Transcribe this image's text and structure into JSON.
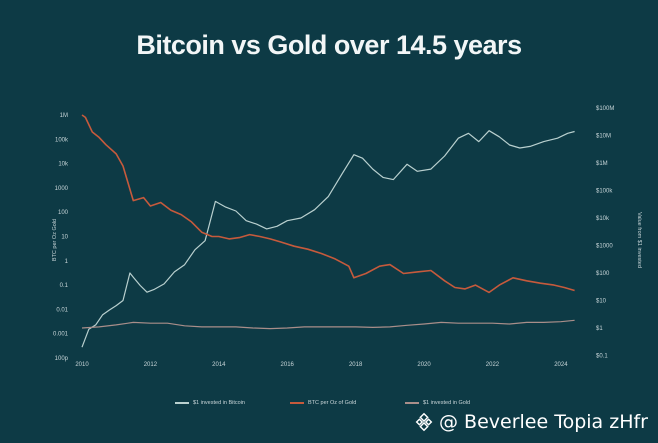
{
  "chart_data": {
    "type": "line",
    "title": "Bitcoin vs Gold over 14.5 years",
    "xlabel": "",
    "ylabel_left": "BTC per Oz Gold",
    "ylabel_right": "Value from $1 invested",
    "x_ticks": [
      "2010",
      "2012",
      "2014",
      "2016",
      "2018",
      "2020",
      "2022",
      "2024"
    ],
    "xlim": [
      2010,
      2024.5
    ],
    "left_ticks": [
      "1M",
      "100k",
      "10k",
      "1000",
      "100",
      "10",
      "1",
      "0.1",
      "0.01",
      "0.001",
      "100p"
    ],
    "right_ticks": [
      "$100M",
      "$10M",
      "$1M",
      "$100k",
      "$10k",
      "$1000",
      "$100",
      "$10",
      "$1",
      "$0.1"
    ],
    "grid": false,
    "legend_position": "bottom",
    "series": [
      {
        "name": "$1 invested in Bitcoin",
        "color": "#b9d0cf",
        "axis": "right",
        "x": [
          2010.0,
          2010.2,
          2010.4,
          2010.6,
          2010.8,
          2011.0,
          2011.2,
          2011.4,
          2011.5,
          2011.7,
          2011.9,
          2012.1,
          2012.4,
          2012.7,
          2013.0,
          2013.3,
          2013.6,
          2013.9,
          2014.2,
          2014.5,
          2014.8,
          2015.1,
          2015.4,
          2015.7,
          2016.0,
          2016.4,
          2016.8,
          2017.2,
          2017.6,
          2017.95,
          2018.2,
          2018.5,
          2018.8,
          2019.1,
          2019.5,
          2019.8,
          2020.2,
          2020.6,
          2021.0,
          2021.3,
          2021.6,
          2021.9,
          2022.2,
          2022.5,
          2022.8,
          2023.1,
          2023.5,
          2023.9,
          2024.2,
          2024.4
        ],
        "y": [
          0.2,
          0.9,
          1.3,
          3.0,
          4.5,
          6.5,
          10,
          100,
          70,
          35,
          20,
          25,
          40,
          110,
          200,
          700,
          1500,
          40000,
          25000,
          18000,
          8000,
          6000,
          4000,
          5000,
          8000,
          10000,
          20000,
          60000,
          400000,
          2000000,
          1500000,
          600000,
          300000,
          250000,
          900000,
          500000,
          600000,
          1800000,
          8000000,
          12000000,
          6000000,
          15000000,
          9000000,
          4500000,
          3500000,
          4000000,
          6000000,
          8000000,
          12000000,
          14000000
        ]
      },
      {
        "name": "BTC per Oz of Gold",
        "color": "#c65a3c",
        "axis": "left",
        "x": [
          2010.0,
          2010.1,
          2010.3,
          2010.5,
          2010.7,
          2011.0,
          2011.2,
          2011.5,
          2011.8,
          2012.0,
          2012.3,
          2012.6,
          2012.9,
          2013.2,
          2013.5,
          2013.8,
          2014.0,
          2014.3,
          2014.6,
          2014.9,
          2015.2,
          2015.5,
          2015.8,
          2016.2,
          2016.6,
          2017.0,
          2017.4,
          2017.8,
          2017.95,
          2018.3,
          2018.7,
          2019.0,
          2019.4,
          2019.8,
          2020.2,
          2020.6,
          2020.9,
          2021.2,
          2021.5,
          2021.9,
          2022.2,
          2022.6,
          2023.0,
          2023.4,
          2023.8,
          2024.1,
          2024.4
        ],
        "y": [
          1000000,
          800000,
          200000,
          120000,
          60000,
          25000,
          8000,
          300,
          400,
          180,
          250,
          120,
          80,
          40,
          15,
          10,
          10,
          8,
          9,
          12,
          10,
          8,
          6,
          4,
          3,
          2,
          1.2,
          0.6,
          0.2,
          0.3,
          0.6,
          0.7,
          0.3,
          0.35,
          0.4,
          0.15,
          0.08,
          0.07,
          0.1,
          0.05,
          0.1,
          0.2,
          0.15,
          0.12,
          0.1,
          0.08,
          0.06
        ]
      },
      {
        "name": "$1 invested in Gold",
        "color": "#a98e8a",
        "axis": "right",
        "x": [
          2010,
          2010.5,
          2011,
          2011.5,
          2012,
          2012.5,
          2013,
          2013.5,
          2014,
          2014.5,
          2015,
          2015.5,
          2016,
          2016.5,
          2017,
          2017.5,
          2018,
          2018.5,
          2019,
          2019.5,
          2020,
          2020.5,
          2021,
          2021.5,
          2022,
          2022.5,
          2023,
          2023.5,
          2024,
          2024.4
        ],
        "y": [
          1,
          1.1,
          1.3,
          1.6,
          1.5,
          1.5,
          1.2,
          1.1,
          1.1,
          1.1,
          1.0,
          0.95,
          1.0,
          1.1,
          1.1,
          1.1,
          1.1,
          1.05,
          1.1,
          1.25,
          1.4,
          1.6,
          1.5,
          1.5,
          1.5,
          1.4,
          1.6,
          1.6,
          1.7,
          1.9
        ]
      }
    ]
  },
  "watermark": {
    "text": "@ Beverlee Topia zHfr",
    "icon": "binance-logo-icon"
  }
}
